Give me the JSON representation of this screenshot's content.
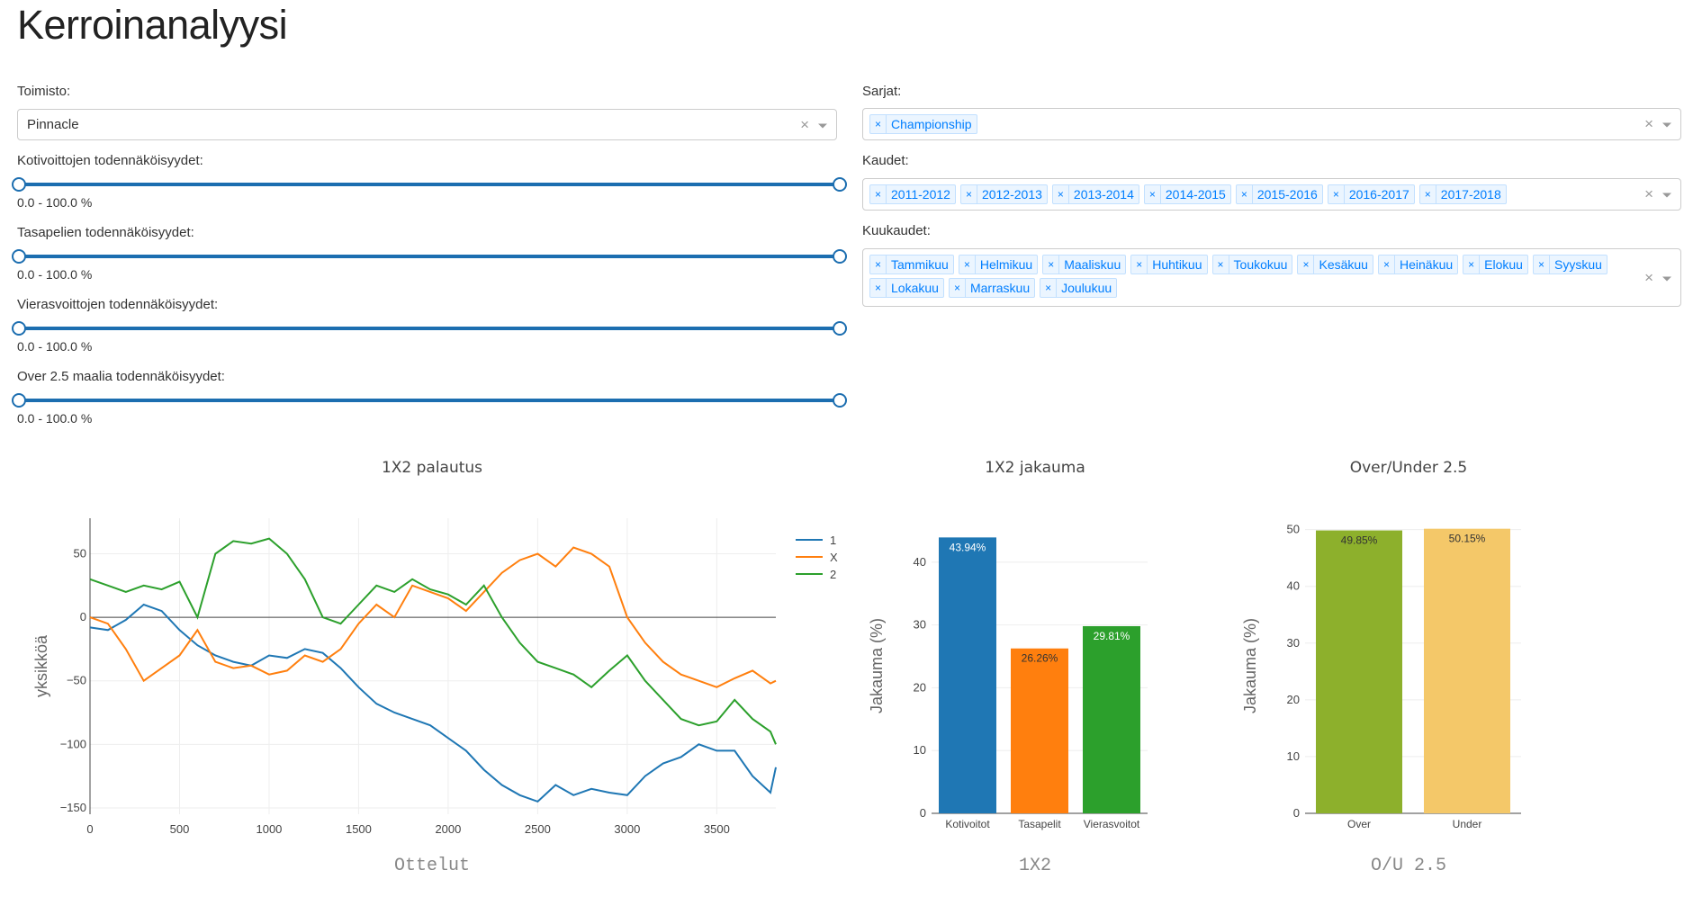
{
  "title": "Kerroinanalyysi",
  "filters": {
    "bookmaker_label": "Toimisto:",
    "bookmaker_value": "Pinnacle",
    "clear_symbol": "×",
    "home_label": "Kotivoittojen todennäköisyydet:",
    "home_value": "0.0 - 100.0 %",
    "draw_label": "Tasapelien todennäköisyydet:",
    "draw_value": "0.0 - 100.0 %",
    "away_label": "Vierasvoittojen todennäköisyydet:",
    "away_value": "0.0 - 100.0 %",
    "over_label": "Over 2.5 maalia todennäköisyydet:",
    "over_value": "0.0 - 100.0 %",
    "series_label": "Sarjat:",
    "series": [
      "Championship"
    ],
    "seasons_label": "Kaudet:",
    "seasons": [
      "2011-2012",
      "2012-2013",
      "2013-2014",
      "2014-2015",
      "2015-2016",
      "2016-2017",
      "2017-2018"
    ],
    "months_label": "Kuukaudet:",
    "months": [
      "Tammikuu",
      "Helmikuu",
      "Maaliskuu",
      "Huhtikuu",
      "Toukokuu",
      "Kesäkuu",
      "Heinäkuu",
      "Elokuu",
      "Syyskuu",
      "Lokakuu",
      "Marraskuu",
      "Joulukuu"
    ]
  },
  "chart_data": [
    {
      "type": "line",
      "title": "1X2 palautus",
      "xlabel": "Ottelut",
      "ylabel": "yksikköä",
      "xlim": [
        0,
        3830
      ],
      "ylim": [
        -155,
        78
      ],
      "xticks": [
        0,
        500,
        1000,
        1500,
        2000,
        2500,
        3000,
        3500
      ],
      "xtick_labels": [
        "0",
        "500",
        "1000",
        "1500",
        "2000",
        "2500",
        "3000",
        "3500"
      ],
      "yticks": [
        50,
        0,
        -50,
        -100,
        -150
      ],
      "ytick_labels": [
        "50",
        "0",
        "−50",
        "−100",
        "−150"
      ],
      "legend_position": "top-right",
      "series": [
        {
          "name": "1",
          "color": "#1f77b4",
          "x": [
            0,
            100,
            200,
            300,
            400,
            500,
            600,
            700,
            800,
            900,
            1000,
            1100,
            1200,
            1300,
            1400,
            1500,
            1600,
            1700,
            1800,
            1900,
            2000,
            2100,
            2200,
            2300,
            2400,
            2500,
            2600,
            2700,
            2800,
            2900,
            3000,
            3100,
            3200,
            3300,
            3400,
            3500,
            3600,
            3700,
            3800,
            3830
          ],
          "y": [
            -8,
            -10,
            -2,
            10,
            5,
            -10,
            -22,
            -30,
            -35,
            -38,
            -30,
            -32,
            -25,
            -28,
            -40,
            -55,
            -68,
            -75,
            -80,
            -85,
            -95,
            -105,
            -120,
            -132,
            -140,
            -145,
            -132,
            -140,
            -135,
            -138,
            -140,
            -125,
            -115,
            -110,
            -100,
            -105,
            -105,
            -125,
            -138,
            -118
          ]
        },
        {
          "name": "X",
          "color": "#ff7f0e",
          "x": [
            0,
            100,
            200,
            300,
            400,
            500,
            600,
            700,
            800,
            900,
            1000,
            1100,
            1200,
            1300,
            1400,
            1500,
            1600,
            1700,
            1800,
            1900,
            2000,
            2100,
            2200,
            2300,
            2400,
            2500,
            2600,
            2700,
            2800,
            2900,
            3000,
            3100,
            3200,
            3300,
            3400,
            3500,
            3600,
            3700,
            3800,
            3830
          ],
          "y": [
            0,
            -5,
            -25,
            -50,
            -40,
            -30,
            -10,
            -35,
            -40,
            -38,
            -45,
            -42,
            -30,
            -35,
            -25,
            -5,
            10,
            0,
            25,
            20,
            15,
            5,
            20,
            35,
            45,
            50,
            40,
            55,
            50,
            40,
            0,
            -20,
            -35,
            -45,
            -50,
            -55,
            -48,
            -42,
            -52,
            -50
          ]
        },
        {
          "name": "2",
          "color": "#2ca02c",
          "x": [
            0,
            100,
            200,
            300,
            400,
            500,
            600,
            700,
            800,
            900,
            1000,
            1100,
            1200,
            1300,
            1400,
            1500,
            1600,
            1700,
            1800,
            1900,
            2000,
            2100,
            2200,
            2300,
            2400,
            2500,
            2600,
            2700,
            2800,
            2900,
            3000,
            3100,
            3200,
            3300,
            3400,
            3500,
            3600,
            3700,
            3800,
            3830
          ],
          "y": [
            30,
            25,
            20,
            25,
            22,
            28,
            0,
            50,
            60,
            58,
            62,
            50,
            30,
            0,
            -5,
            10,
            25,
            20,
            30,
            22,
            18,
            10,
            25,
            0,
            -20,
            -35,
            -40,
            -45,
            -55,
            -42,
            -30,
            -50,
            -65,
            -80,
            -85,
            -82,
            -65,
            -80,
            -90,
            -100
          ]
        }
      ]
    },
    {
      "type": "bar",
      "title": "1X2 jakauma",
      "xlabel": "1X2",
      "ylabel": "Jakauma (%)",
      "categories": [
        "Kotivoitot",
        "Tasapelit",
        "Vierasvoitot"
      ],
      "values": [
        43.94,
        26.26,
        29.81
      ],
      "value_labels": [
        "43.94%",
        "26.26%",
        "29.81%"
      ],
      "colors": [
        "#1f77b4",
        "#ff7f0e",
        "#2ca02c"
      ],
      "ylim": [
        0,
        47
      ],
      "yticks": [
        0,
        10,
        20,
        30,
        40
      ]
    },
    {
      "type": "bar",
      "title": "Over/Under 2.5",
      "xlabel": "O/U 2.5",
      "ylabel": "Jakauma (%)",
      "categories": [
        "Over",
        "Under"
      ],
      "values": [
        49.85,
        50.15
      ],
      "value_labels": [
        "49.85%",
        "50.15%"
      ],
      "colors": [
        "#8db02c",
        "#f4c869"
      ],
      "ylim": [
        0,
        52
      ],
      "yticks": [
        0,
        10,
        20,
        30,
        40,
        50
      ]
    }
  ]
}
